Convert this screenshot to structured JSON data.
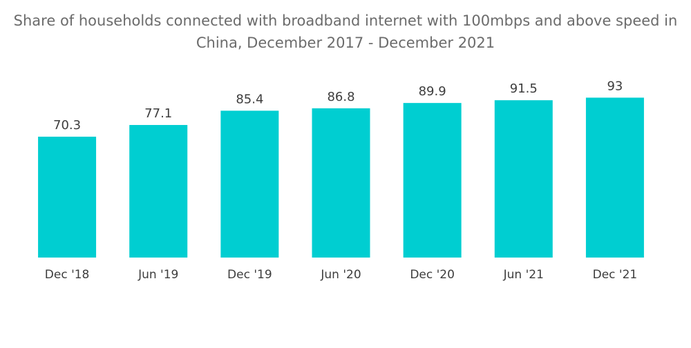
{
  "chart_data": {
    "type": "bar",
    "title_line1": "Share of households connected with broadband internet with 100mbps and above speed in",
    "title_line2": "China, December 2017 - December 2021",
    "categories": [
      "Dec '18",
      "Jun '19",
      "Dec '19",
      "Jun '20",
      "Dec '20",
      "Jun '21",
      "Dec '21"
    ],
    "values": [
      70.3,
      77.1,
      85.4,
      86.8,
      89.9,
      91.5,
      93
    ],
    "value_labels": [
      "70.3",
      "77.1",
      "85.4",
      "86.8",
      "89.9",
      "91.5",
      "93"
    ],
    "xlabel": "",
    "ylabel": "",
    "ylim": [
      0,
      100
    ],
    "grid": false,
    "legend": "none",
    "bar_color": "#00ced1"
  }
}
